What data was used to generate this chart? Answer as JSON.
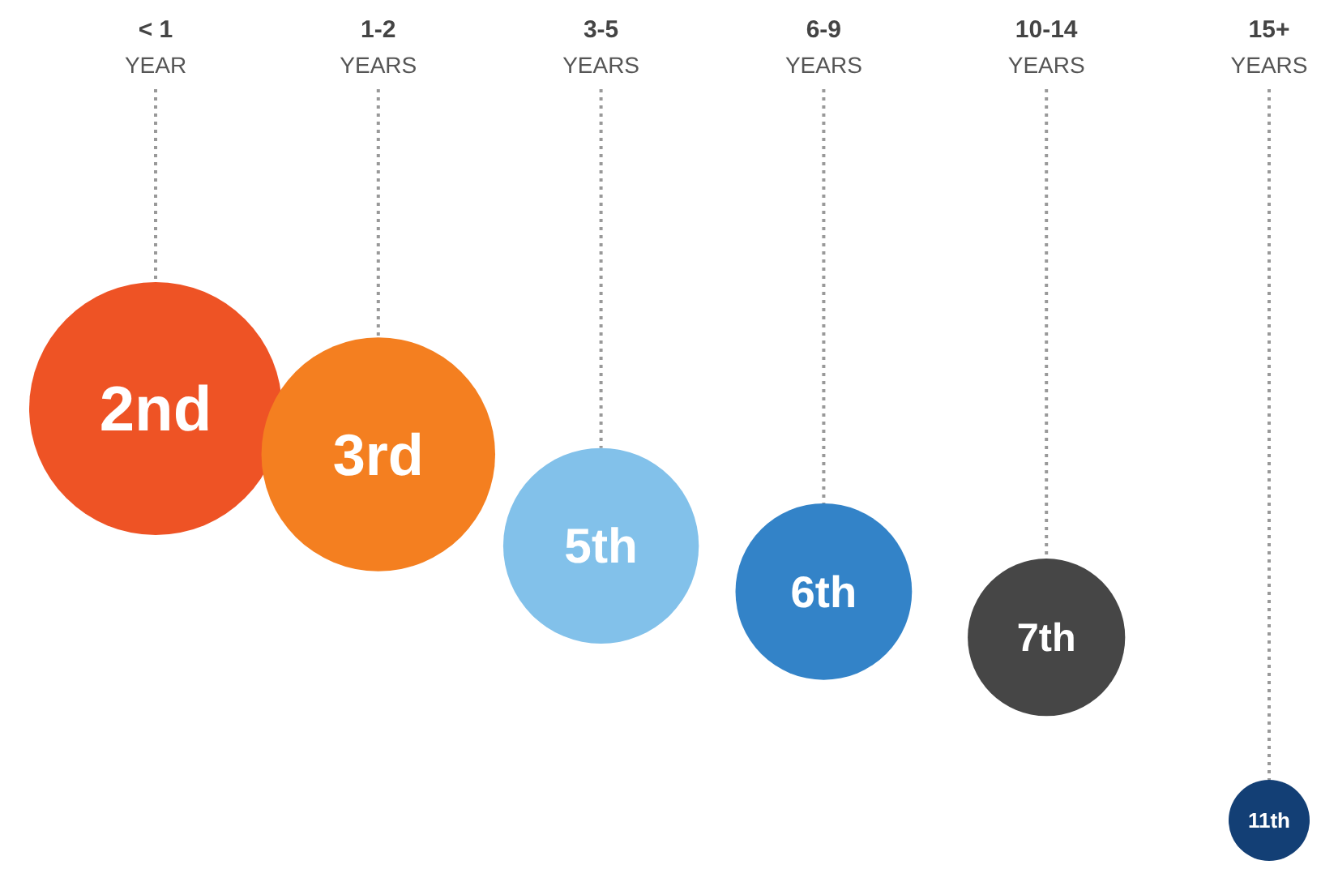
{
  "chart_data": {
    "type": "other",
    "categories": [
      "< 1\nYEAR",
      "1-2\nYEARS",
      "3-5\nYEARS",
      "6-9\nYEARS",
      "10-14\nYEARS",
      "15+\nYEARS"
    ],
    "values": [
      2,
      3,
      5,
      6,
      7,
      11
    ],
    "value_labels": [
      "2nd",
      "3rd",
      "5th",
      "6th",
      "7th",
      "11th"
    ],
    "colors": [
      "#ee5325",
      "#f47f20",
      "#82c1ea",
      "#3383c8",
      "#464646",
      "#133f75"
    ]
  }
}
